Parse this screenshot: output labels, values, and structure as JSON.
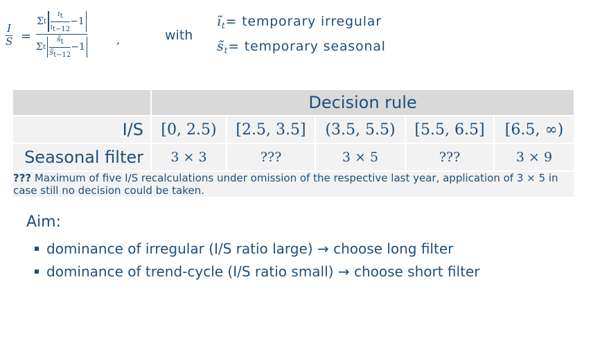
{
  "formula": {
    "lhs_num": "I",
    "lhs_den": "S",
    "sum": "Σ",
    "sub_t": "t",
    "num_top": "ı",
    "num_top_sub": "t",
    "num_bottom": "ı",
    "num_bottom_sub": "t−12",
    "den_top": "s̃",
    "den_top_sub": "t",
    "den_bottom": "s̃",
    "den_bottom_sub": "t−12",
    "minus_one": "−1",
    "equals": "=",
    "comma": ","
  },
  "with_label": "with",
  "definitions": [
    {
      "symbol": "ı̃",
      "sub": "t",
      "text": "= temporary irregular"
    },
    {
      "symbol": "s̃",
      "sub": "t",
      "text": "= temporary seasonal"
    }
  ],
  "table": {
    "header": "Decision rule",
    "is_label": "I/S",
    "filter_label": "Seasonal filter",
    "intervals": [
      "[0, 2.5)",
      "[2.5, 3.5]",
      "(3.5, 5.5)",
      "[5.5, 6.5]",
      "[6.5, ∞)"
    ],
    "filters": [
      "3 × 3",
      "???",
      "3 × 5",
      "???",
      "3 × 9"
    ],
    "note_bold": "???",
    "note_text": " Maximum of five I/S recalculations under omission of the respective last year, application of 3 × 5 in case still no decision could be taken."
  },
  "aim": {
    "title": "Aim:",
    "bullets": [
      "dominance of irregular (I/S ratio large) → choose long filter",
      "dominance of trend-cycle (I/S ratio small) → choose short filter"
    ]
  },
  "colors": {
    "text": "#1f4e79",
    "header_bg": "#d9d9d9",
    "row_bg": "#f2f2f2"
  }
}
